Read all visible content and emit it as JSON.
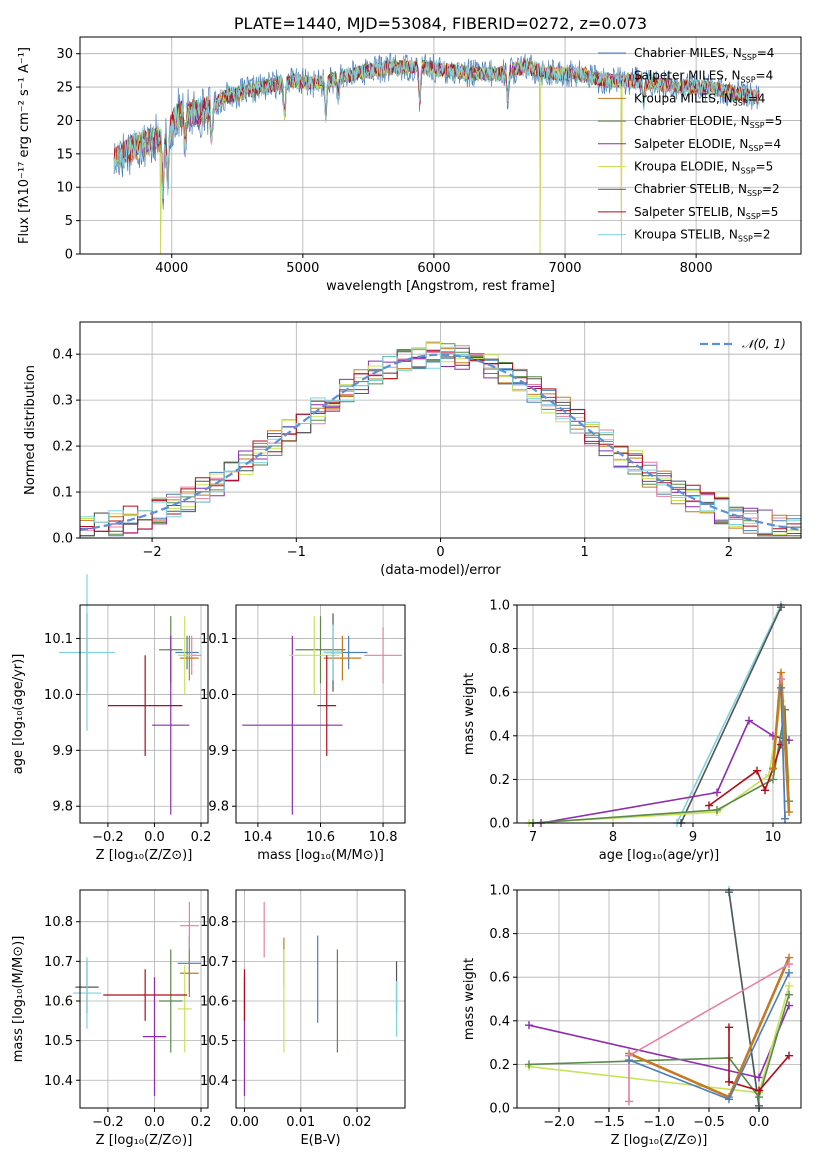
{
  "colors": {
    "Chabrier MILES": "#4c7fb8",
    "Salpeter MILES": "#e87fa3",
    "Kroupa MILES": "#c47a22",
    "Chabrier ELODIE": "#5b8a4a",
    "Salpeter ELODIE": "#8e2cb0",
    "Kroupa ELODIE": "#c8e25a",
    "Chabrier STELIB": "#555555",
    "Salpeter STELIB": "#b00d1a",
    "Kroupa STELIB": "#7fd3de"
  },
  "chart_data": [
    {
      "id": "spectrum",
      "type": "line",
      "title": "PLATE=1440, MJD=53084, FIBERID=0272, z=0.073",
      "xlabel": "wavelength [Angstrom, rest frame]",
      "ylabel": "Flux [fλ10⁻¹⁷ erg cm⁻² s⁻¹ A⁻¹]",
      "xlim": [
        3300,
        8800
      ],
      "ylim": [
        0,
        32.5
      ],
      "xticks": [
        4000,
        5000,
        6000,
        7000,
        8000
      ],
      "yticks": [
        0,
        5,
        10,
        15,
        20,
        25,
        30
      ],
      "legend_position": "upper right",
      "legend": [
        {
          "model": "Chabrier MILES",
          "label": "Chabrier MILES, N",
          "sub": "SSP",
          "n": "=4"
        },
        {
          "model": "Salpeter MILES",
          "label": "Salpeter MILES, N",
          "sub": "SSP",
          "n": "=4"
        },
        {
          "model": "Kroupa MILES",
          "label": "Kroupa MILES, N",
          "sub": "SSP",
          "n": "=4"
        },
        {
          "model": "Chabrier ELODIE",
          "label": "Chabrier ELODIE, N",
          "sub": "SSP",
          "n": "=5"
        },
        {
          "model": "Salpeter ELODIE",
          "label": "Salpeter ELODIE, N",
          "sub": "SSP",
          "n": "=4"
        },
        {
          "model": "Kroupa ELODIE",
          "label": "Kroupa ELODIE, N",
          "sub": "SSP",
          "n": "=5"
        },
        {
          "model": "Chabrier STELIB",
          "label": "Chabrier STELIB, N",
          "sub": "SSP",
          "n": "=2"
        },
        {
          "model": "Salpeter STELIB",
          "label": "Salpeter STELIB, N",
          "sub": "SSP",
          "n": "=5"
        },
        {
          "model": "Kroupa STELIB",
          "label": "Kroupa STELIB, N",
          "sub": "SSP",
          "n": "=2"
        }
      ],
      "continuum": [
        [
          3560,
          14
        ],
        [
          3700,
          16
        ],
        [
          3850,
          17
        ],
        [
          3950,
          17.5
        ],
        [
          4050,
          21
        ],
        [
          4200,
          21
        ],
        [
          4300,
          22
        ],
        [
          4400,
          23.5
        ],
        [
          4500,
          24
        ],
        [
          4700,
          25
        ],
        [
          4900,
          26
        ],
        [
          5100,
          25.5
        ],
        [
          5300,
          26.5
        ],
        [
          5500,
          27.5
        ],
        [
          5700,
          28
        ],
        [
          5900,
          28
        ],
        [
          6100,
          27.5
        ],
        [
          6300,
          27
        ],
        [
          6500,
          27
        ],
        [
          6700,
          28
        ],
        [
          6900,
          27
        ],
        [
          7100,
          27
        ],
        [
          7300,
          26
        ],
        [
          7500,
          26
        ],
        [
          7700,
          25.5
        ],
        [
          7900,
          25
        ],
        [
          8100,
          25
        ],
        [
          8300,
          24
        ],
        [
          8480,
          23.5
        ]
      ],
      "absorption_lines": [
        [
          3934,
          9
        ],
        [
          3969,
          8
        ],
        [
          4102,
          5
        ],
        [
          4304,
          5
        ],
        [
          4861,
          5
        ],
        [
          5175,
          5
        ],
        [
          5270,
          3
        ],
        [
          5892,
          5
        ],
        [
          6563,
          4
        ],
        [
          7600,
          3
        ]
      ],
      "glitches": [
        [
          3915,
          0
        ],
        [
          6810,
          0
        ],
        [
          7430,
          0
        ]
      ]
    },
    {
      "id": "residuals",
      "type": "step",
      "xlabel": "(data-model)/error",
      "ylabel": "Normed distribution",
      "xlim": [
        -2.5,
        2.5
      ],
      "ylim": [
        0,
        0.47
      ],
      "xticks": [
        -2,
        -1,
        0,
        1,
        2
      ],
      "yticks": [
        0,
        0.1,
        0.2,
        0.3,
        0.4
      ],
      "bin_width": 0.1,
      "reference_curve": "𝒩(0, 1)",
      "legend_position": "upper right"
    },
    {
      "id": "age_vs_Z",
      "type": "errorbar",
      "xlabel": "Z [log₁₀(Z/Z⊙)]",
      "ylabel": "age  [log₁₀(age/yr)]",
      "xlim": [
        -0.32,
        0.23
      ],
      "ylim": [
        9.77,
        10.16
      ],
      "xticks": [
        -0.2,
        0.0,
        0.2
      ],
      "yticks": [
        9.8,
        9.9,
        10.0,
        10.1
      ],
      "points": [
        {
          "model": "Chabrier MILES",
          "x": 0.14,
          "y": 10.075,
          "xerr": 0.05,
          "yerr": 0.03
        },
        {
          "model": "Salpeter MILES",
          "x": 0.16,
          "y": 10.07,
          "xerr": 0.04,
          "yerr": 0.035
        },
        {
          "model": "Kroupa MILES",
          "x": 0.15,
          "y": 10.065,
          "xerr": 0.04,
          "yerr": 0.04
        },
        {
          "model": "Chabrier ELODIE",
          "x": 0.07,
          "y": 10.08,
          "xerr": 0.05,
          "yerr": 0.06
        },
        {
          "model": "Salpeter ELODIE",
          "x": 0.07,
          "y": 9.945,
          "xerr": 0.08,
          "yerr": 0.16
        },
        {
          "model": "Kroupa ELODIE",
          "x": 0.13,
          "y": 10.07,
          "xerr": 0.03,
          "yerr": 0.07
        },
        {
          "model": "Chabrier STELIB",
          "x": -0.29,
          "y": 10.075,
          "xerr": 0.0,
          "yerr": 0.07
        },
        {
          "model": "Salpeter STELIB",
          "x": -0.04,
          "y": 9.98,
          "xerr": 0.16,
          "yerr": 0.09
        },
        {
          "model": "Kroupa STELIB",
          "x": -0.29,
          "y": 10.075,
          "xerr": 0.12,
          "yerr": 0.14
        }
      ]
    },
    {
      "id": "age_vs_mass",
      "type": "errorbar",
      "xlabel": "mass [log₁₀(M/M⊙)]",
      "xlim": [
        10.33,
        10.87
      ],
      "ylim": [
        9.77,
        10.16
      ],
      "xticks": [
        10.4,
        10.6,
        10.8
      ],
      "yticks": [
        9.8,
        9.9,
        10.0,
        10.1
      ],
      "points": [
        {
          "model": "Chabrier MILES",
          "x": 10.69,
          "y": 10.075,
          "xerr": 0.06,
          "yerr": 0.03
        },
        {
          "model": "Salpeter MILES",
          "x": 10.8,
          "y": 10.07,
          "xerr": 0.06,
          "yerr": 0.05
        },
        {
          "model": "Kroupa MILES",
          "x": 10.67,
          "y": 10.065,
          "xerr": 0.06,
          "yerr": 0.04
        },
        {
          "model": "Chabrier ELODIE",
          "x": 10.6,
          "y": 10.08,
          "xerr": 0.08,
          "yerr": 0.06
        },
        {
          "model": "Salpeter ELODIE",
          "x": 10.51,
          "y": 9.945,
          "xerr": 0.16,
          "yerr": 0.16
        },
        {
          "model": "Kroupa ELODIE",
          "x": 10.58,
          "y": 10.07,
          "xerr": 0.08,
          "yerr": 0.07
        },
        {
          "model": "Chabrier STELIB",
          "x": 10.64,
          "y": 10.075,
          "xerr": 0.03,
          "yerr": 0.07
        },
        {
          "model": "Salpeter STELIB",
          "x": 10.62,
          "y": 9.98,
          "xerr": 0.03,
          "yerr": 0.09
        },
        {
          "model": "Kroupa STELIB",
          "x": 10.64,
          "y": 10.075,
          "xerr": 0.03,
          "yerr": 0.05
        }
      ]
    },
    {
      "id": "weight_vs_age",
      "type": "line",
      "xlabel": "age  [log₁₀(age/yr)]",
      "ylabel": "mass weight",
      "xlim": [
        6.8,
        10.35
      ],
      "ylim": [
        0,
        1.0
      ],
      "xticks": [
        7,
        8,
        9,
        10
      ],
      "yticks": [
        0.0,
        0.2,
        0.4,
        0.6,
        0.8,
        1.0
      ],
      "series": [
        {
          "model": "Kroupa STELIB",
          "points": [
            [
              8.8,
              0.0
            ],
            [
              10.1,
              1.0
            ]
          ]
        },
        {
          "model": "Chabrier STELIB",
          "points": [
            [
              8.85,
              0.0
            ],
            [
              10.1,
              0.99
            ]
          ]
        },
        {
          "model": "Salpeter ELODIE",
          "points": [
            [
              7.1,
              0.0
            ],
            [
              9.3,
              0.14
            ],
            [
              9.7,
              0.47
            ],
            [
              10.0,
              0.4
            ],
            [
              10.2,
              0.38
            ]
          ]
        },
        {
          "model": "Kroupa ELODIE",
          "points": [
            [
              6.95,
              0.0
            ],
            [
              9.3,
              0.05
            ],
            [
              9.95,
              0.22
            ],
            [
              10.1,
              0.56
            ],
            [
              10.2,
              0.2
            ]
          ]
        },
        {
          "model": "Chabrier ELODIE",
          "points": [
            [
              7.0,
              0.0
            ],
            [
              9.3,
              0.06
            ],
            [
              10.0,
              0.2
            ],
            [
              10.15,
              0.52
            ],
            [
              10.2,
              0.1
            ]
          ]
        },
        {
          "model": "Salpeter STELIB",
          "points": [
            [
              9.2,
              0.08
            ],
            [
              9.8,
              0.24
            ],
            [
              9.9,
              0.15
            ],
            [
              10.0,
              0.25
            ],
            [
              10.1,
              0.36
            ]
          ]
        },
        {
          "model": "Kroupa MILES",
          "points": [
            [
              10.0,
              0.25
            ],
            [
              10.1,
              0.69
            ],
            [
              10.2,
              0.05
            ]
          ]
        },
        {
          "model": "Salpeter MILES",
          "points": [
            [
              10.1,
              0.66
            ],
            [
              10.15,
              0.02
            ]
          ]
        },
        {
          "model": "Chabrier MILES",
          "points": [
            [
              10.1,
              0.62
            ],
            [
              10.15,
              0.02
            ]
          ]
        }
      ]
    },
    {
      "id": "mass_vs_Z",
      "type": "errorbar",
      "xlabel": "Z [log₁₀(Z/Z⊙)]",
      "ylabel": "mass [log₁₀(M/M⊙)]",
      "xlim": [
        -0.32,
        0.23
      ],
      "ylim": [
        10.33,
        10.88
      ],
      "xticks": [
        -0.2,
        0.0,
        0.2
      ],
      "yticks": [
        10.4,
        10.5,
        10.6,
        10.7,
        10.8
      ],
      "points": [
        {
          "model": "Chabrier MILES",
          "x": 0.15,
          "y": 10.695,
          "xerr": 0.05,
          "yerr": 0.07
        },
        {
          "model": "Salpeter MILES",
          "x": 0.15,
          "y": 10.79,
          "xerr": 0.04,
          "yerr": 0.06
        },
        {
          "model": "Kroupa MILES",
          "x": 0.15,
          "y": 10.67,
          "xerr": 0.04,
          "yerr": 0.06
        },
        {
          "model": "Chabrier ELODIE",
          "x": 0.07,
          "y": 10.6,
          "xerr": 0.05,
          "yerr": 0.13
        },
        {
          "model": "Salpeter ELODIE",
          "x": 0.0,
          "y": 10.51,
          "xerr": 0.05,
          "yerr": 0.15
        },
        {
          "model": "Kroupa ELODIE",
          "x": 0.13,
          "y": 10.58,
          "xerr": 0.03,
          "yerr": 0.11
        },
        {
          "model": "Chabrier STELIB",
          "x": -0.29,
          "y": 10.635,
          "xerr": 0.05,
          "yerr": 0.065
        },
        {
          "model": "Salpeter STELIB",
          "x": -0.04,
          "y": 10.615,
          "xerr": 0.18,
          "yerr": 0.065
        },
        {
          "model": "Kroupa STELIB",
          "x": -0.29,
          "y": 10.62,
          "xerr": 0.06,
          "yerr": 0.09
        }
      ]
    },
    {
      "id": "mass_vs_EBV",
      "type": "errorbar",
      "xlabel": "E(B-V)",
      "xlim": [
        -0.0015,
        0.0285
      ],
      "ylim": [
        10.33,
        10.88
      ],
      "xticks": [
        0.0,
        0.01,
        0.02
      ],
      "yticks": [
        10.4,
        10.5,
        10.6,
        10.7,
        10.8
      ],
      "points": [
        {
          "model": "Chabrier MILES",
          "x": 0.013,
          "y": 10.655,
          "xerr": 0.0,
          "yerr": 0.11
        },
        {
          "model": "Salpeter MILES",
          "x": 0.0035,
          "y": 10.78,
          "xerr": 0.0,
          "yerr": 0.07
        },
        {
          "model": "Kroupa MILES",
          "x": 0.007,
          "y": 10.7,
          "xerr": 0.0,
          "yerr": 0.06
        },
        {
          "model": "Chabrier ELODIE",
          "x": 0.0165,
          "y": 10.6,
          "xerr": 0.0,
          "yerr": 0.13
        },
        {
          "model": "Salpeter ELODIE",
          "x": 0.0,
          "y": 10.51,
          "xerr": 0.0,
          "yerr": 0.15
        },
        {
          "model": "Kroupa ELODIE",
          "x": 0.007,
          "y": 10.6,
          "xerr": 0.0,
          "yerr": 0.13
        },
        {
          "model": "Chabrier STELIB",
          "x": 0.027,
          "y": 10.635,
          "xerr": 0.0,
          "yerr": 0.065
        },
        {
          "model": "Salpeter STELIB",
          "x": 0.0,
          "y": 10.615,
          "xerr": 0.0,
          "yerr": 0.065
        },
        {
          "model": "Kroupa STELIB",
          "x": 0.027,
          "y": 10.58,
          "xerr": 0.0,
          "yerr": 0.07
        }
      ]
    },
    {
      "id": "weight_vs_Z",
      "type": "line",
      "xlabel": "Z [log₁₀(Z/Z⊙)]",
      "ylabel": "mass weight",
      "xlim": [
        -2.42,
        0.42
      ],
      "ylim": [
        0,
        1.0
      ],
      "xticks": [
        -2.0,
        -1.5,
        -1.0,
        -0.5,
        0.0
      ],
      "yticks": [
        0.0,
        0.2,
        0.4,
        0.6,
        0.8,
        1.0
      ],
      "series": [
        {
          "model": "Kroupa STELIB",
          "points": [
            [
              -0.3,
              1.0
            ],
            [
              0.0,
              0.0
            ]
          ]
        },
        {
          "model": "Chabrier STELIB",
          "points": [
            [
              -0.3,
              0.99
            ],
            [
              0.0,
              0.01
            ]
          ]
        },
        {
          "model": "Salpeter ELODIE",
          "points": [
            [
              -2.3,
              0.38
            ],
            [
              0.0,
              0.14
            ],
            [
              0.3,
              0.47
            ]
          ]
        },
        {
          "model": "Kroupa ELODIE",
          "points": [
            [
              -2.3,
              0.19
            ],
            [
              0.0,
              0.07
            ],
            [
              0.3,
              0.56
            ]
          ]
        },
        {
          "model": "Chabrier ELODIE",
          "points": [
            [
              -2.3,
              0.2
            ],
            [
              -0.3,
              0.23
            ],
            [
              0.0,
              0.05
            ],
            [
              0.3,
              0.52
            ]
          ]
        },
        {
          "model": "Salpeter STELIB",
          "points": [
            [
              -0.3,
              0.37
            ],
            [
              -0.3,
              0.12
            ],
            [
              0.0,
              0.08
            ],
            [
              0.3,
              0.24
            ]
          ]
        },
        {
          "model": "Kroupa MILES",
          "points": [
            [
              -1.3,
              0.25
            ],
            [
              -0.3,
              0.05
            ],
            [
              0.3,
              0.69
            ]
          ]
        },
        {
          "model": "Salpeter MILES",
          "points": [
            [
              -1.3,
              0.03
            ],
            [
              -1.3,
              0.24
            ],
            [
              0.3,
              0.66
            ]
          ]
        },
        {
          "model": "Chabrier MILES",
          "points": [
            [
              -1.3,
              0.22
            ],
            [
              -0.3,
              0.04
            ],
            [
              0.3,
              0.62
            ]
          ]
        }
      ]
    }
  ]
}
